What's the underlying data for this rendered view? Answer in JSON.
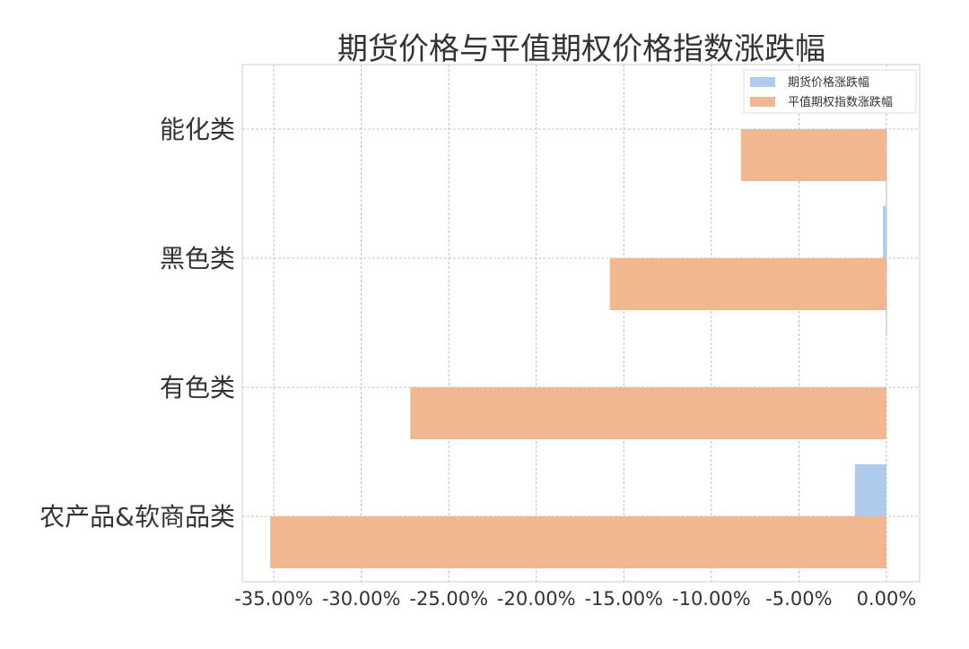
{
  "chart_data": {
    "type": "bar",
    "orientation": "horizontal",
    "title": "期货价格与平值期权价格指数涨跌幅",
    "xlabel": "",
    "ylabel": "",
    "categories": [
      "能化类",
      "黑色类",
      "有色类",
      "农产品&软商品类"
    ],
    "series": [
      {
        "name": "期货价格涨跌幅",
        "color": "#aecbed",
        "values": [
          0.0,
          -0.2,
          0.0,
          -1.8
        ]
      },
      {
        "name": "平值期权指数涨跌幅",
        "color": "#f0b791",
        "values": [
          -8.3,
          -15.8,
          -27.2,
          -35.2
        ]
      }
    ],
    "xlim": [
      -36.8,
      1.9
    ],
    "xticks": [
      -35,
      -30,
      -25,
      -20,
      -15,
      -10,
      -5,
      0
    ],
    "xtick_labels": [
      "-35.00%",
      "-30.00%",
      "-25.00%",
      "-20.00%",
      "-15.00%",
      "-10.00%",
      "-5.00%",
      "0.00%"
    ],
    "grid": true,
    "legend_position": "top-right"
  }
}
